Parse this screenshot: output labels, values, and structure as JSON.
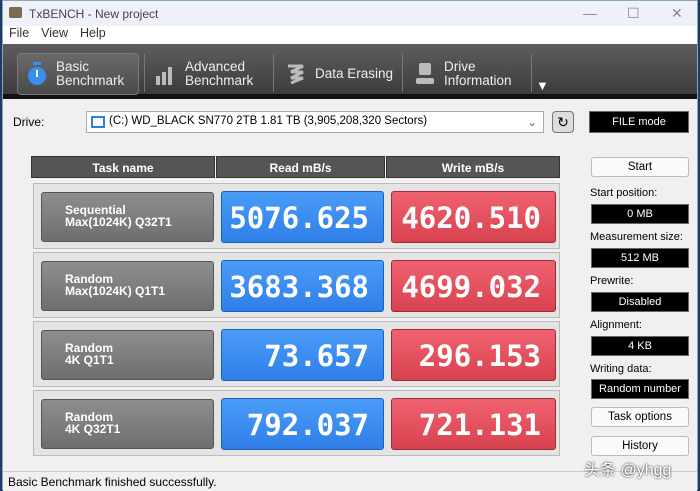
{
  "window": {
    "title": "TxBENCH - New project",
    "minimize": "—",
    "maximize": "☐",
    "close": "✕"
  },
  "menu": [
    "File",
    "View",
    "Help"
  ],
  "tabs": [
    {
      "line1": "Basic",
      "line2": "Benchmark",
      "icon": "stopwatch-icon"
    },
    {
      "line1": "Advanced",
      "line2": "Benchmark",
      "icon": "bar-chart-icon"
    },
    {
      "line1": "Data Erasing",
      "line2": "",
      "icon": "eraser-icon"
    },
    {
      "line1": "Drive",
      "line2": "Information",
      "icon": "drive-info-icon"
    }
  ],
  "tabs_more": "▼",
  "drive": {
    "label": "Drive:",
    "value": "(C:) WD_BLACK SN770 2TB  1.81 TB (3,905,208,320 Sectors)",
    "mode": "FILE mode"
  },
  "table": {
    "headers": [
      "Task name",
      "Read mB/s",
      "Write mB/s"
    ],
    "rows": [
      {
        "line1": "Sequential",
        "line2": "Max(1024K) Q32T1",
        "read": "5076.625",
        "write": "4620.510"
      },
      {
        "line1": "Random",
        "line2": "Max(1024K) Q1T1",
        "read": "3683.368",
        "write": "4699.032"
      },
      {
        "line1": "Random",
        "line2": "4K Q1T1",
        "read": "73.657",
        "write": "296.153"
      },
      {
        "line1": "Random",
        "line2": "4K Q32T1",
        "read": "792.037",
        "write": "721.131"
      }
    ]
  },
  "panel": {
    "start": "Start",
    "start_position_label": "Start position:",
    "start_position": "0 MB",
    "measurement_size_label": "Measurement size:",
    "measurement_size": "512 MB",
    "prewrite_label": "Prewrite:",
    "prewrite": "Disabled",
    "alignment_label": "Alignment:",
    "alignment": "4 KB",
    "writing_data_label": "Writing data:",
    "writing_data": "Random number",
    "task_options": "Task options",
    "history": "History"
  },
  "status": "Basic Benchmark finished successfully.",
  "watermark": "头条 @yhgg",
  "colors": {
    "read": "#3a8ef0",
    "write": "#e8505e",
    "toolbar": "#4a4a4a"
  }
}
